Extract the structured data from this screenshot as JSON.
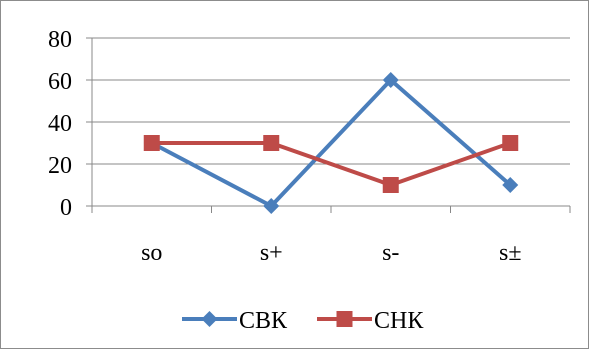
{
  "chart_data": {
    "type": "line",
    "categories": [
      "so",
      "s+",
      "s-",
      "s±"
    ],
    "series": [
      {
        "name": "СВК",
        "values": [
          30,
          0,
          60,
          10
        ],
        "color": "#4a7ebb",
        "marker": "diamond"
      },
      {
        "name": "СНК",
        "values": [
          30,
          30,
          10,
          30
        ],
        "color": "#be4b48",
        "marker": "square"
      }
    ],
    "y_ticks": [
      "0",
      "20",
      "40",
      "60",
      "80"
    ],
    "ylim": [
      0,
      80
    ],
    "grid": true,
    "legend_position": "bottom"
  }
}
